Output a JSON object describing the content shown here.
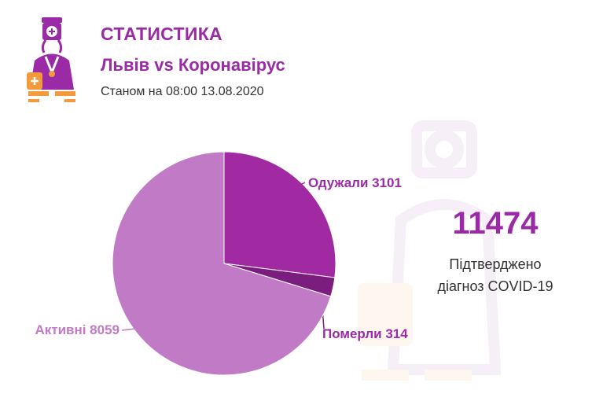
{
  "header": {
    "title": "СТАТИСТИКА",
    "subtitle": "Львів vs Коронавірус",
    "date": "Станом на 08:00 13.08.2020"
  },
  "summary": {
    "total": "11474",
    "caption_line1": "Підтверджено",
    "caption_line2": "діагноз COVID-19"
  },
  "colors": {
    "accent": "#9b2aa6",
    "recovered": "#a12aa3",
    "deaths": "#7b1c7f",
    "active": "#c07ac6",
    "logo_orange": "#f39a3c"
  },
  "logo": {
    "icon": "doctor-icon"
  },
  "chart_data": {
    "type": "pie",
    "slices": [
      {
        "label": "Одужали 3101",
        "name": "Одужали",
        "value": 3101,
        "color": "#a12aa3"
      },
      {
        "label": "Померли 314",
        "name": "Померли",
        "value": 314,
        "color": "#7b1c7f"
      },
      {
        "label": "Активні 8059",
        "name": "Активні",
        "value": 8059,
        "color": "#c07ac6"
      }
    ],
    "start_angle_deg": 0,
    "direction": "clockwise"
  }
}
